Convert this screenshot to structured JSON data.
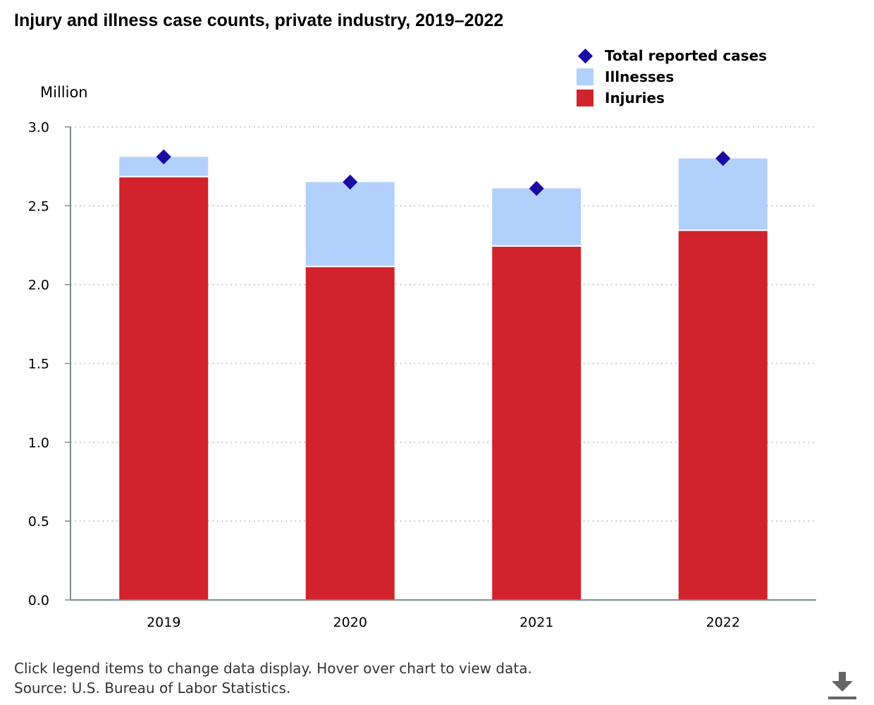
{
  "title": "Injury and illness case counts, private industry, 2019–2022",
  "footnote": {
    "line1": "Click legend items to change data display. Hover over chart to view data.",
    "line2": "Source: U.S. Bureau of Labor Statistics."
  },
  "download_icon": "download-icon",
  "colors": {
    "injuries": "#d0232b",
    "illnesses": "#b1d1fc",
    "total": "#1a0aa6",
    "axis": "#7f8c8d",
    "grid": "#aaaaaa"
  },
  "chart_data": {
    "type": "bar",
    "stacked": true,
    "title": "Injury and illness case counts, private industry, 2019–2022",
    "ylabel": "Million",
    "xlabel": "",
    "ylim": [
      0,
      3.0
    ],
    "yticks": [
      "0.0",
      "0.5",
      "1.0",
      "1.5",
      "2.0",
      "2.5",
      "3.0"
    ],
    "grid": true,
    "legend_position": "top-right",
    "categories": [
      "2019",
      "2020",
      "2021",
      "2022"
    ],
    "series": [
      {
        "name": "Injuries",
        "kind": "bar",
        "values": [
          2.68,
          2.11,
          2.24,
          2.34
        ]
      },
      {
        "name": "Illnesses",
        "kind": "bar",
        "values": [
          0.13,
          0.54,
          0.37,
          0.46
        ]
      },
      {
        "name": "Total reported cases",
        "kind": "marker",
        "values": [
          2.81,
          2.65,
          2.61,
          2.8
        ]
      }
    ]
  }
}
